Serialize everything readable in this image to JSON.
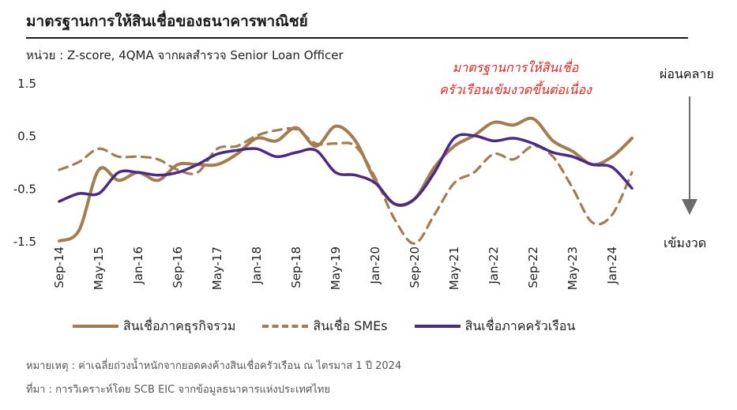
{
  "title": "มาตรฐานการให้สินเชื่อของธนาคารพาณิชย์",
  "unit_text": "หน่วย : Z-score, 4QMA จากผลสำรวจ Senior Loan Officer",
  "annotation": [
    "มาตรฐานการให้สินเชื่อ",
    "ครัวเรือนเข้มงวดขึ้นต่อเนื่อง"
  ],
  "side_labels": {
    "top": "ผ่อนคลาย",
    "bottom": "เข้มงวด"
  },
  "footnote_1": "หมายเหตุ : ค่าเฉลี่ยถ่วงน้ำหนักจากยอดคงค้างสินเชื่อครัวเรือน ณ ไตรมาส 1 ปี 2024",
  "footnote_2": "ที่มา : การวิเคราะห์โดย SCB EIC จากข้อมูลธนาคารแห่งประเทศไทย",
  "colors": {
    "total": "#a37c4f",
    "smes": "#a37c4f",
    "household": "#4b2a86",
    "annotation": "#e8261e"
  },
  "chart_data": {
    "type": "line",
    "title": "มาตรฐานการให้สินเชื่อของธนาคารพาณิชย์",
    "xlabel": "",
    "ylabel": "",
    "ylim": [
      -1.5,
      1.5
    ],
    "yticks": [
      1.5,
      0.5,
      -0.5,
      -1.5
    ],
    "x_tick_labels": [
      "Sep-14",
      "May-15",
      "Jan-16",
      "Sep-16",
      "May-17",
      "Jan-18",
      "Sep-18",
      "May-19",
      "Jan-20",
      "Sep-20",
      "May-21",
      "Jan-22",
      "Sep-22",
      "May-23",
      "Jan-24"
    ],
    "grid": false,
    "legend_position": "bottom",
    "x": [
      "Sep-14",
      "Jan-15",
      "May-15",
      "Sep-15",
      "Jan-16",
      "May-16",
      "Sep-16",
      "Jan-17",
      "May-17",
      "Sep-17",
      "Jan-18",
      "May-18",
      "Sep-18",
      "Jan-19",
      "May-19",
      "Sep-19",
      "Jan-20",
      "May-20",
      "Sep-20",
      "Jan-21",
      "May-21",
      "Sep-21",
      "Jan-22",
      "May-22",
      "Sep-22",
      "Jan-23",
      "May-23",
      "Sep-23",
      "Jan-24",
      "May-24"
    ],
    "series": [
      {
        "name": "สินเชื่อภาคธุรกิจรวม",
        "style": "solid",
        "values": [
          -1.5,
          -1.3,
          -0.15,
          -0.35,
          -0.2,
          -0.35,
          -0.05,
          -0.05,
          -0.05,
          0.15,
          0.45,
          0.4,
          0.65,
          0.3,
          0.68,
          0.4,
          -0.35,
          -0.8,
          -0.7,
          -0.1,
          0.3,
          0.5,
          0.75,
          0.7,
          0.82,
          0.4,
          0.2,
          -0.05,
          0.1,
          0.45
        ]
      },
      {
        "name": "สินเชื่อ SMEs",
        "style": "dashed",
        "values": [
          -0.15,
          0.0,
          0.25,
          0.1,
          0.1,
          0.05,
          -0.15,
          -0.2,
          0.25,
          0.3,
          0.5,
          0.6,
          0.62,
          0.35,
          0.35,
          0.3,
          -0.3,
          -1.1,
          -1.55,
          -1.0,
          -0.4,
          -0.2,
          0.15,
          0.05,
          0.3,
          0.1,
          -0.5,
          -1.15,
          -1.0,
          -0.2
        ]
      },
      {
        "name": "สินเชื่อภาคครัวเรือน",
        "style": "solid",
        "values": [
          -0.75,
          -0.6,
          -0.6,
          -0.2,
          -0.2,
          -0.25,
          -0.2,
          -0.05,
          0.15,
          0.22,
          0.25,
          0.1,
          0.18,
          0.22,
          -0.2,
          -0.25,
          -0.4,
          -0.8,
          -0.7,
          -0.2,
          0.45,
          0.5,
          0.4,
          0.45,
          0.35,
          0.18,
          0.1,
          -0.05,
          -0.1,
          -0.5
        ]
      }
    ]
  }
}
